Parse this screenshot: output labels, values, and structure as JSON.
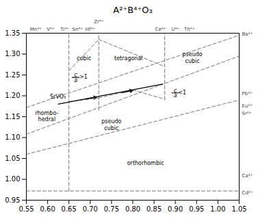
{
  "chart_data": {
    "type": "line",
    "title": "A²⁺B⁴⁺O₃",
    "xlim": [
      0.55,
      1.05
    ],
    "ylim": [
      0.95,
      1.35
    ],
    "xticks": [
      0.55,
      {
        "value": 0.6,
        "label": "0.60"
      },
      0.65,
      {
        "value": 0.7,
        "label": "0.70"
      },
      0.75,
      {
        "value": 0.8,
        "label": "0.80"
      },
      0.85,
      {
        "value": 0.9,
        "label": "0.90"
      },
      0.95,
      {
        "value": 1,
        "label": "1.00"
      },
      1.05
    ],
    "yticks": [
      0.95,
      {
        "value": 1,
        "label": "1.00"
      },
      1.05,
      {
        "value": 1.1,
        "label": "1.10"
      },
      1.15,
      {
        "value": 1.2,
        "label": "1.20"
      },
      1.25,
      {
        "value": 1.3,
        "label": "1.30"
      },
      1.35
    ],
    "grid": false,
    "series": [
      {
        "x": [
          0.55,
          1.05
        ],
        "values": [
          0.972,
          0.972
        ],
        "color": "#777777",
        "line_style": "dashed"
      },
      {
        "x": [
          0.55,
          1.05
        ],
        "values": [
          1.06,
          1.19
        ],
        "color": "#777777",
        "line_style": "dashed"
      },
      {
        "x": [
          0.55,
          1.05
        ],
        "values": [
          1.108,
          1.295
        ],
        "color": "#777777",
        "line_style": "dashed"
      },
      {
        "x": [
          0.55,
          1.05
        ],
        "values": [
          1.172,
          1.345
        ],
        "color": "#777777",
        "line_style": "dashed"
      },
      {
        "x": [
          0.65,
          0.65
        ],
        "values": [
          0.972,
          1.35
        ],
        "color": "#777777",
        "line_style": "dashed"
      },
      {
        "x": [
          0.72,
          0.72
        ],
        "values": [
          1.165,
          1.35
        ],
        "color": "#777777",
        "line_style": "dashed"
      },
      {
        "x": [
          0.875,
          0.875
        ],
        "values": [
          1.19,
          1.35
        ],
        "color": "#777777",
        "line_style": "dashed"
      },
      {
        "x": [
          0.65,
          0.72
        ],
        "values": [
          1.26,
          1.335
        ],
        "color": "#777777",
        "line_style": "dashed"
      },
      {
        "x": [
          0.72,
          0.875
        ],
        "values": [
          1.335,
          1.27
        ],
        "color": "#777777",
        "line_style": "dashed"
      },
      {
        "x": [
          0.65,
          0.72
        ],
        "values": [
          1.186,
          1.195
        ],
        "color": "#777777",
        "line_style": "dashed"
      },
      {
        "x": [
          0.72,
          0.8
        ],
        "values": [
          1.195,
          1.214
        ],
        "color": "#777777",
        "line_style": "dashed"
      },
      {
        "x": [
          0.8,
          0.875
        ],
        "values": [
          1.214,
          1.192
        ],
        "color": "#777777",
        "line_style": "dashed"
      },
      {
        "x": [
          0.625,
          0.87
        ],
        "values": [
          1.18,
          1.228
        ],
        "color": "black",
        "line_style": "solid"
      },
      {
        "x": [
          0.658,
          0.674
        ],
        "values": [
          1.244,
          1.244
        ],
        "color": "black",
        "line_style": "solid"
      },
      {
        "x": [
          0.892,
          0.908
        ],
        "values": [
          1.207,
          1.207
        ],
        "color": "black",
        "line_style": "solid"
      }
    ],
    "arrows": [
      {
        "x1": 0.69,
        "y1": 1.192,
        "x2": 0.715,
        "y2": 1.197
      },
      {
        "x1": 0.775,
        "y1": 1.207,
        "x2": 0.8,
        "y2": 1.213
      }
    ],
    "top_labels": {
      "color": "#444444",
      "rows": [
        [
          {
            "text": "Mn⁴⁺",
            "x": 0.572
          },
          {
            "text": "V⁴⁺",
            "x": 0.607
          },
          {
            "text": "Ti⁴⁺",
            "x": 0.64
          },
          {
            "text": "Sn⁴⁺",
            "x": 0.67
          },
          {
            "text": "Hf⁴⁺",
            "x": 0.7
          },
          {
            "text": "Ce⁴⁺",
            "x": 0.865
          },
          {
            "text": "U⁴⁺",
            "x": 0.9
          },
          {
            "text": "Th⁴⁺",
            "x": 0.933
          }
        ],
        [
          {
            "text": "Zr⁴⁺",
            "x": 0.72
          }
        ]
      ]
    },
    "right_labels": {
      "color": "#444444",
      "items": [
        {
          "text": "Ba²⁺",
          "y": 1.348
        },
        {
          "text": "Pb²⁺",
          "y": 1.205
        },
        {
          "text": "Eu²⁺",
          "y": 1.176
        },
        {
          "text": "Sr²⁺",
          "y": 1.158
        },
        {
          "text": "Ca²⁺",
          "y": 1.008
        },
        {
          "text": "Cd²⁺",
          "y": 0.967
        }
      ]
    },
    "annotations": [
      {
        "text": "cubic",
        "x": 0.685,
        "y": 1.29
      },
      {
        "text": "tetragonal",
        "x": 0.79,
        "y": 1.29
      },
      {
        "text": ">1",
        "x": 0.684,
        "y": 1.245
      },
      {
        "text": "pseudo",
        "x": 0.94,
        "y": 1.3
      },
      {
        "text": "cubic",
        "x": 0.94,
        "y": 1.283
      },
      {
        "text": "<1",
        "x": 0.916,
        "y": 1.208
      },
      {
        "text": "SrVO₃",
        "x": 0.624,
        "y": 1.197
      },
      {
        "text": "rhombo-",
        "x": 0.598,
        "y": 1.158
      },
      {
        "text": "hedral",
        "x": 0.598,
        "y": 1.143
      },
      {
        "text": "pseudo",
        "x": 0.75,
        "y": 1.138
      },
      {
        "text": "cubic",
        "x": 0.75,
        "y": 1.123
      },
      {
        "text": "orthorhombic",
        "x": 0.83,
        "y": 1.038
      }
    ],
    "fractions": [
      {
        "numerator": "c",
        "denominator": "a",
        "x": 0.666,
        "y": 1.244
      },
      {
        "numerator": "c",
        "denominator": "a",
        "x": 0.9,
        "y": 1.207
      }
    ]
  }
}
